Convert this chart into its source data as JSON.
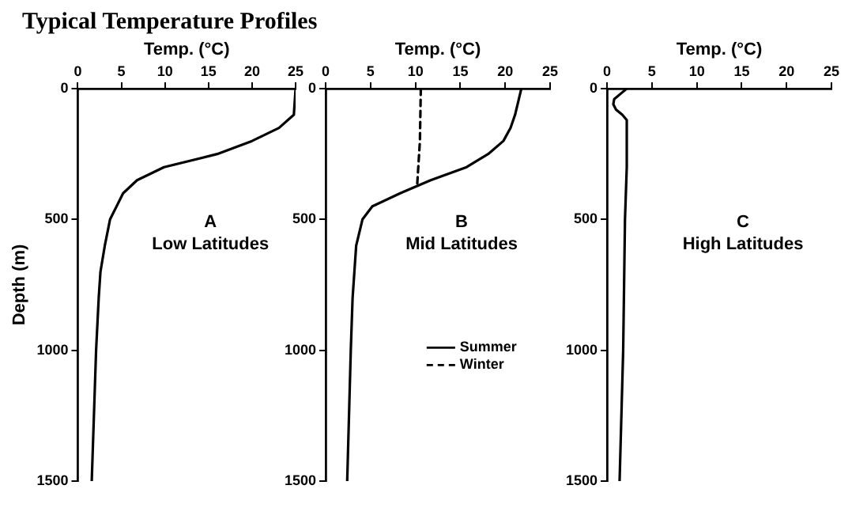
{
  "chart_data": [
    {
      "type": "line",
      "title": "Typical Temperature Profiles",
      "xlabel": "Temp. (°C)",
      "ylabel": "Depth (m)",
      "xlim": [
        0,
        25
      ],
      "xticks": [
        0,
        5,
        10,
        15,
        20,
        25
      ],
      "ylim": [
        1500,
        0
      ],
      "yticks": [
        0,
        500,
        1000,
        1500
      ],
      "grid": false,
      "marker": "none",
      "annotations": [
        "A",
        "Low Latitudes"
      ],
      "series": [
        {
          "color": "#000000",
          "line_style": "solid",
          "x": [
            25,
            24.8,
            23.1,
            20,
            16,
            9.9,
            6.8,
            5.2,
            3.7,
            3.1,
            2.6,
            2.4,
            2.1,
            1.9,
            1.6
          ],
          "values": [
            0,
            100,
            150,
            200,
            250,
            300,
            350,
            400,
            500,
            600,
            700,
            800,
            1000,
            1200,
            1500
          ]
        }
      ]
    },
    {
      "type": "line",
      "xlabel": "Temp. (°C)",
      "xlim": [
        0,
        25
      ],
      "xticks": [
        0,
        5,
        10,
        15,
        20,
        25
      ],
      "ylim": [
        1500,
        0
      ],
      "yticks": [
        0,
        500,
        1000,
        1500
      ],
      "grid": false,
      "marker": "none",
      "legend": "right",
      "annotations": [
        "B",
        "Mid Latitudes"
      ],
      "series": [
        {
          "name": "Summer",
          "color": "#000000",
          "line_style": "solid",
          "x": [
            21.8,
            21.1,
            20.6,
            19.8,
            18.1,
            15.7,
            11.7,
            8.3,
            5.2,
            4.1,
            3.4,
            3,
            2.8,
            2.4
          ],
          "values": [
            0,
            100,
            150,
            200,
            250,
            300,
            350,
            400,
            450,
            500,
            600,
            800,
            1000,
            1500
          ]
        },
        {
          "name": "Winter",
          "color": "#000000",
          "line_style": "dashed",
          "x": [
            10.6,
            10.5,
            10.2
          ],
          "values": [
            0,
            200,
            365
          ]
        }
      ]
    },
    {
      "type": "line",
      "xlabel": "Temp. (°C)",
      "xlim": [
        0,
        25
      ],
      "xticks": [
        0,
        5,
        10,
        15,
        20,
        25
      ],
      "ylim": [
        1500,
        0
      ],
      "yticks": [
        0,
        500,
        1000,
        1500
      ],
      "grid": false,
      "marker": "none",
      "annotations": [
        "C",
        "High Latitudes"
      ],
      "series": [
        {
          "color": "#000000",
          "line_style": "solid",
          "x": [
            2.2,
            1.5,
            0.8,
            0.7,
            1,
            1.7,
            2.2,
            2.2,
            2,
            1.8,
            1.4
          ],
          "values": [
            0,
            20,
            40,
            60,
            80,
            100,
            120,
            300,
            500,
            1000,
            1500
          ]
        }
      ]
    }
  ]
}
